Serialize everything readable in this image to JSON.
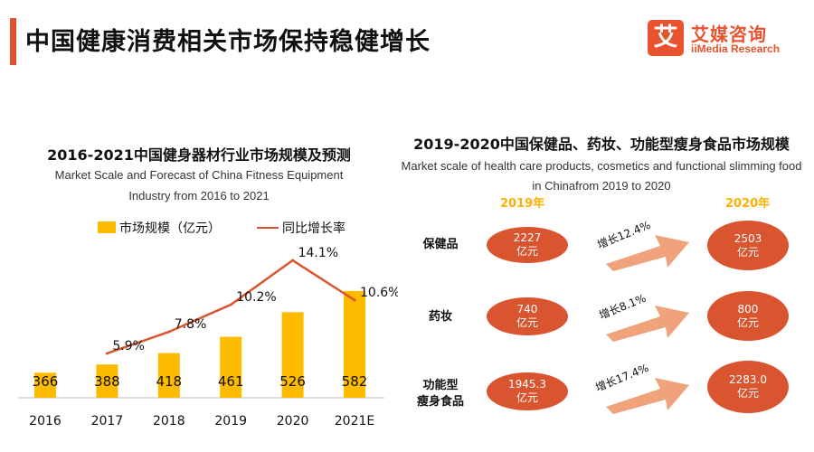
{
  "header": {
    "title": "中国健康消费相关市场保持稳健增长",
    "logo_glyph": "艾",
    "logo_cn": "艾媒咨询",
    "logo_en": "iiMedia Research"
  },
  "colors": {
    "accent": "#e0522d",
    "bar": "#fdbb00",
    "line": "#d9552f",
    "oval": "#d9552f",
    "arrow": "#f0a27a",
    "year": "#fdb000"
  },
  "chart_data": [
    {
      "type": "bar",
      "title": "2016-2021中国健身器材行业市场规模及预测",
      "subtitle_line1": "Market Scale and Forecast of China Fitness Equipment",
      "subtitle_line2": "Industry from 2016 to 2021",
      "categories": [
        "2016",
        "2017",
        "2018",
        "2019",
        "2020",
        "2021E"
      ],
      "series": [
        {
          "name": "市场规模（亿元）",
          "type": "bar",
          "values": [
            366,
            388,
            418,
            461,
            526,
            582
          ],
          "labels": [
            "366",
            "388",
            "418",
            "461",
            "526",
            "582"
          ]
        },
        {
          "name": "同比增长率",
          "type": "line",
          "values": [
            null,
            5.9,
            7.8,
            10.2,
            14.1,
            10.6
          ],
          "labels": [
            "",
            "5.9%",
            "7.8%",
            "10.2%",
            "14.1%",
            "10.6%"
          ]
        }
      ],
      "legend_position": "top",
      "grid": false
    },
    {
      "type": "table",
      "title": "2019-2020中国保健品、药妆、功能型瘦身食品市场规模",
      "subtitle_line1": "Market scale of health care products, cosmetics and functional slimming food",
      "subtitle_line2": "in Chinafrom 2019 to 2020",
      "year_from": "2019年",
      "year_to": "2020年",
      "rows": [
        {
          "label_line1": "保健品",
          "label_line2": "",
          "v2019": "2227",
          "v2020": "2503",
          "unit": "亿元",
          "growth": "增长12.4%"
        },
        {
          "label_line1": "药妆",
          "label_line2": "",
          "v2019": "740",
          "v2020": "800",
          "unit": "亿元",
          "growth": "增长8.1%"
        },
        {
          "label_line1": "功能型",
          "label_line2": "瘦身食品",
          "v2019": "1945.3",
          "v2020": "2283.0",
          "unit": "亿元",
          "growth": "增长17.4%"
        }
      ]
    }
  ]
}
